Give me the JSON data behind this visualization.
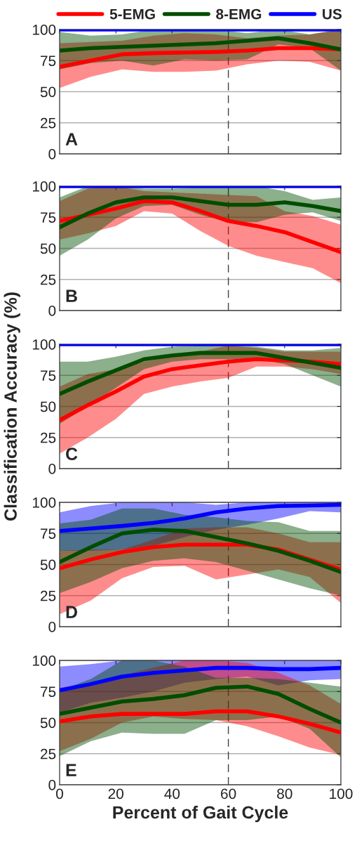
{
  "chart_data": [
    {
      "type": "line",
      "annotations": [
        "A"
      ],
      "legend": "top",
      "tick_labels": "y",
      "grid": "y",
      "xlim": [
        0,
        100
      ],
      "ylim": [
        0,
        100
      ],
      "xticks": [
        0,
        20,
        40,
        60,
        80,
        100
      ],
      "yticks": [
        0,
        25,
        50,
        75,
        100
      ],
      "ref_lines": [
        {
          "axis": "x",
          "value": 60,
          "color": "#404040",
          "line_style": "dashed"
        }
      ],
      "x": [
        0,
        11.1,
        22.2,
        33.3,
        44.4,
        55.6,
        66.7,
        77.8,
        88.9,
        100
      ],
      "series": [
        {
          "name": "5-EMG",
          "color": "#ff0000",
          "values": [
            70,
            75,
            80,
            81,
            81.5,
            82,
            83,
            85,
            85,
            84
          ],
          "lower": [
            53,
            62,
            68,
            66,
            66,
            67,
            72,
            75,
            74,
            67
          ],
          "upper": [
            89,
            90,
            91,
            95,
            97,
            96,
            93,
            95,
            96,
            100
          ]
        },
        {
          "name": "8-EMG",
          "color": "#004d00",
          "values": [
            83,
            85,
            86,
            87,
            88,
            89,
            91,
            93,
            89,
            84
          ],
          "lower": [
            68,
            73,
            75,
            71,
            76,
            75,
            76,
            88,
            85,
            67
          ],
          "upper": [
            98,
            95,
            96,
            100,
            100,
            100,
            97,
            100,
            96,
            100
          ]
        },
        {
          "name": "US",
          "color": "#0000ff",
          "values": [
            100,
            100,
            100,
            100,
            100,
            100,
            100,
            100,
            100,
            100
          ]
        }
      ]
    },
    {
      "type": "line",
      "annotations": [
        "B"
      ],
      "tick_labels": "y",
      "grid": "y",
      "xlim": [
        0,
        100
      ],
      "ylim": [
        0,
        100
      ],
      "xticks": [
        0,
        20,
        40,
        60,
        80,
        100
      ],
      "yticks": [
        0,
        25,
        50,
        75,
        100
      ],
      "ref_lines": [
        {
          "axis": "x",
          "value": 60,
          "color": "#404040",
          "line_style": "dashed"
        }
      ],
      "x": [
        0,
        10,
        20,
        30,
        40,
        50,
        60,
        70,
        80,
        90,
        100
      ],
      "series": [
        {
          "color": "#ff0000",
          "values": [
            72,
            77,
            82,
            88,
            87,
            80,
            72,
            68,
            63,
            55,
            47
          ],
          "lower": [
            57,
            62,
            68,
            80,
            78,
            64,
            52,
            44,
            39,
            34,
            22
          ],
          "upper": [
            88,
            98,
            100,
            96,
            95,
            94,
            93,
            92,
            80,
            76,
            69
          ]
        },
        {
          "color": "#004d00",
          "values": [
            67,
            78,
            87,
            91,
            91,
            88,
            85,
            85,
            87,
            84,
            80
          ],
          "lower": [
            44,
            57,
            74,
            84,
            85,
            77,
            71,
            71,
            77,
            79,
            72
          ],
          "upper": [
            91,
            100,
            100,
            98,
            98,
            99,
            100,
            100,
            96,
            89,
            91
          ]
        },
        {
          "color": "#0000ff",
          "values": [
            100,
            100,
            100,
            100,
            100,
            100,
            100,
            100,
            100,
            100,
            100
          ]
        }
      ]
    },
    {
      "type": "line",
      "annotations": [
        "C"
      ],
      "ylabel": "Classification Accuracy (%)",
      "tick_labels": "y",
      "grid": "y",
      "xlim": [
        0,
        100
      ],
      "ylim": [
        0,
        100
      ],
      "xticks": [
        0,
        20,
        40,
        60,
        80,
        100
      ],
      "yticks": [
        0,
        25,
        50,
        75,
        100
      ],
      "ref_lines": [
        {
          "axis": "x",
          "value": 60,
          "color": "#404040",
          "line_style": "dashed"
        }
      ],
      "x": [
        0,
        10,
        20,
        30,
        40,
        50,
        60,
        70,
        80,
        90,
        100
      ],
      "series": [
        {
          "color": "#ff0000",
          "values": [
            39,
            51,
            62,
            74,
            80,
            83,
            86,
            88,
            87,
            86,
            84
          ],
          "lower": [
            12,
            25,
            40,
            60,
            66,
            70,
            73,
            82,
            82,
            80,
            76
          ],
          "upper": [
            66,
            76,
            80,
            86,
            90,
            94,
            99,
            97,
            94,
            94,
            94
          ]
        },
        {
          "color": "#004d00",
          "values": [
            60,
            70,
            79,
            88,
            91,
            93,
            93,
            93,
            89,
            85,
            81
          ],
          "lower": [
            36,
            50,
            65,
            80,
            86,
            88,
            88,
            88,
            84,
            75,
            66
          ],
          "upper": [
            86,
            86,
            90,
            95,
            98,
            99,
            99,
            98,
            95,
            95,
            97
          ]
        },
        {
          "color": "#0000ff",
          "values": [
            100,
            100,
            100,
            100,
            100,
            100,
            100,
            100,
            100,
            100,
            100
          ]
        }
      ]
    },
    {
      "type": "line",
      "annotations": [
        "D"
      ],
      "tick_labels": "y",
      "grid": "y",
      "xlim": [
        0,
        100
      ],
      "ylim": [
        0,
        100
      ],
      "xticks": [
        0,
        20,
        40,
        60,
        80,
        100
      ],
      "yticks": [
        0,
        25,
        50,
        75,
        100
      ],
      "ref_lines": [
        {
          "axis": "x",
          "value": 60,
          "color": "#404040",
          "line_style": "dashed"
        }
      ],
      "x": [
        0,
        11.1,
        22.2,
        33.3,
        44.4,
        55.6,
        66.7,
        77.8,
        88.9,
        100
      ],
      "series": [
        {
          "color": "#0000ff",
          "values": [
            77,
            79,
            81,
            83.5,
            87,
            92,
            95,
            97,
            97.5,
            98
          ],
          "lower": [
            61,
            61,
            62,
            65,
            72,
            78,
            82,
            87,
            93,
            92
          ],
          "upper": [
            92,
            97,
            100,
            100,
            100,
            98,
            100,
            100,
            100,
            100
          ]
        },
        {
          "color": "#ff0000",
          "values": [
            47,
            54,
            60,
            64,
            66,
            66,
            66,
            62,
            54,
            46
          ],
          "lower": [
            10,
            21,
            39,
            48,
            49,
            38,
            42,
            46,
            40,
            19
          ],
          "upper": [
            61,
            62,
            62,
            70,
            79,
            80,
            80,
            75,
            68,
            68
          ]
        },
        {
          "color": "#004d00",
          "values": [
            52,
            64,
            75,
            78,
            77,
            72,
            67,
            61,
            53,
            44
          ],
          "lower": [
            27,
            36,
            47,
            53,
            55,
            52,
            45,
            38,
            31,
            25
          ],
          "upper": [
            83,
            86,
            95,
            95,
            90,
            88,
            85,
            84,
            77,
            77
          ]
        }
      ]
    },
    {
      "type": "line",
      "annotations": [
        "E"
      ],
      "xlabel": "Percent of Gait Cycle",
      "grid": "y",
      "xlim": [
        0,
        100
      ],
      "ylim": [
        0,
        100
      ],
      "xticks": [
        0,
        20,
        40,
        60,
        80,
        100
      ],
      "yticks": [
        0,
        25,
        50,
        75,
        100
      ],
      "ref_lines": [
        {
          "axis": "x",
          "value": 60,
          "color": "#404040",
          "line_style": "dashed"
        }
      ],
      "x": [
        0,
        11.1,
        22.2,
        33.3,
        44.4,
        55.6,
        66.7,
        77.8,
        88.9,
        100
      ],
      "series": [
        {
          "color": "#0000ff",
          "values": [
            76,
            81,
            87,
            90,
            92,
            94,
            94,
            93,
            93,
            94
          ],
          "lower": [
            58,
            66,
            70,
            75,
            82,
            85,
            87,
            80,
            84,
            85
          ],
          "upper": [
            95,
            97,
            100,
            100,
            100,
            100,
            100,
            100,
            100,
            100
          ]
        },
        {
          "color": "#ff0000",
          "values": [
            51,
            55,
            57,
            57,
            57,
            59,
            59,
            55,
            49,
            42
          ],
          "lower": [
            27,
            37,
            50,
            55,
            53,
            52,
            47,
            39,
            30,
            24
          ],
          "upper": [
            78,
            82,
            88,
            94,
            100,
            100,
            98,
            90,
            80,
            65
          ]
        },
        {
          "color": "#004d00",
          "values": [
            57,
            62,
            67,
            69,
            72,
            78,
            79,
            73,
            61,
            50
          ],
          "lower": [
            23,
            35,
            42,
            41,
            41,
            52,
            52,
            55,
            45,
            22
          ],
          "upper": [
            76,
            85,
            100,
            100,
            95,
            86,
            86,
            85,
            82,
            79
          ]
        }
      ]
    }
  ]
}
